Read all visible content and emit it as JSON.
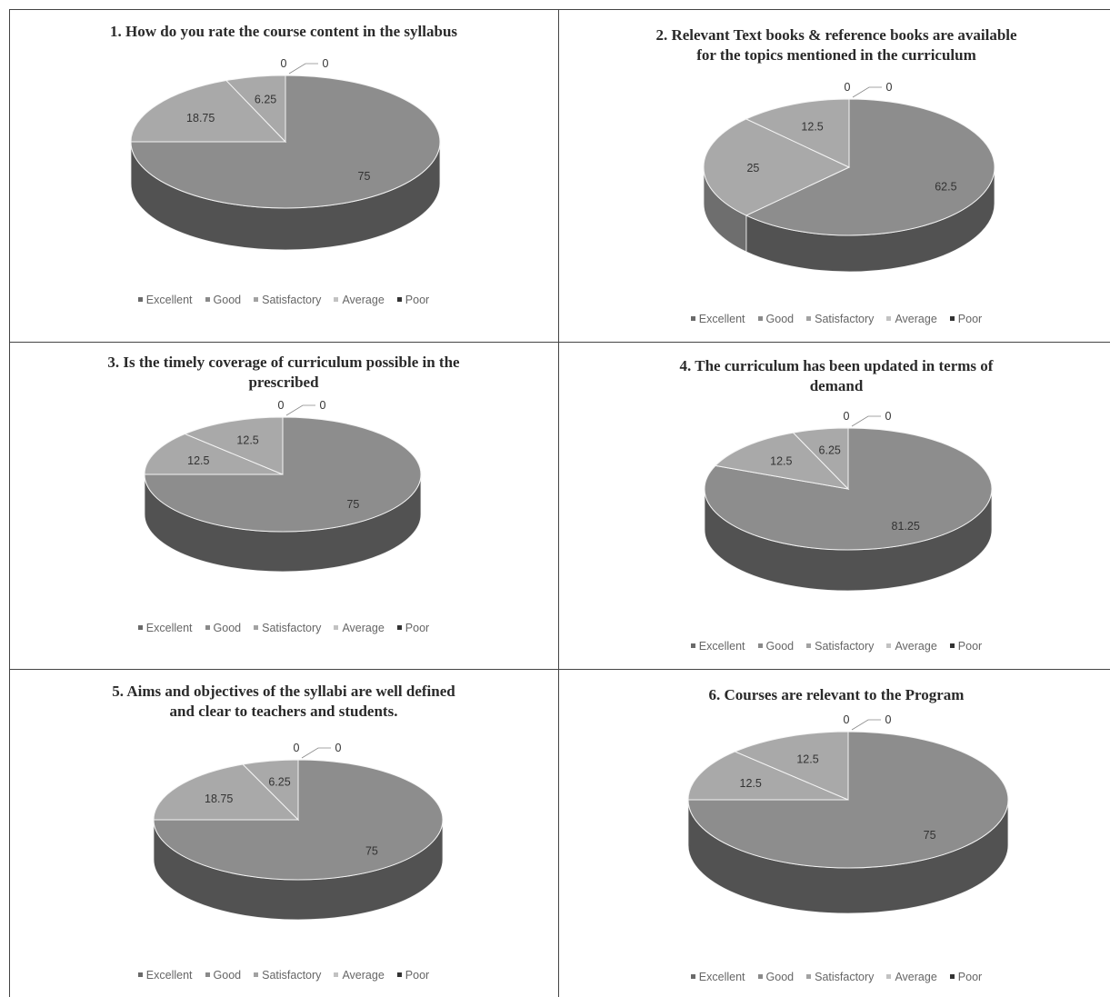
{
  "colors": {
    "top": "#8d8d8d",
    "side": "#525252",
    "small_top": "#a9a9a9",
    "small_side": "#6e6e6e",
    "edge": "#f4f4f4",
    "border": "#444444"
  },
  "chart_data": [
    {
      "type": "pie",
      "title": "1. How do you rate the course content in the syllabus",
      "categories": [
        "Excellent",
        "Good",
        "Satisfactory",
        "Average",
        "Poor"
      ],
      "values": [
        75,
        18.75,
        6.25,
        0,
        0
      ],
      "value_labels": [
        "75",
        "18.75",
        "6.25",
        "0",
        "0"
      ],
      "legend_position": "bottom"
    },
    {
      "type": "pie",
      "title": "2. Relevant Text books & reference books are available\nfor the topics mentioned in the curriculum",
      "categories": [
        "Excellent",
        "Good",
        "Satisfactory",
        "Average",
        "Poor"
      ],
      "values": [
        62.5,
        25,
        12.5,
        0,
        0
      ],
      "value_labels": [
        "62.5",
        "25",
        "12.5",
        "0",
        "0"
      ],
      "legend_position": "bottom"
    },
    {
      "type": "pie",
      "title": "3. Is the timely coverage of curriculum possible in the\nprescribed",
      "categories": [
        "Excellent",
        "Good",
        "Satisfactory",
        "Average",
        "Poor"
      ],
      "values": [
        75,
        12.5,
        12.5,
        0,
        0
      ],
      "value_labels": [
        "75",
        "12.5",
        "12.5",
        "0",
        "0"
      ],
      "legend_position": "bottom"
    },
    {
      "type": "pie",
      "title": "4. The curriculum has been updated in terms of\ndemand",
      "categories": [
        "Excellent",
        "Good",
        "Satisfactory",
        "Average",
        "Poor"
      ],
      "values": [
        81.25,
        12.5,
        6.25,
        0,
        0
      ],
      "value_labels": [
        "81.25",
        "12.5",
        "6.25",
        "0",
        "0"
      ],
      "legend_position": "bottom"
    },
    {
      "type": "pie",
      "title": "5. Aims and objectives of the syllabi are well defined\nand clear to teachers and students.",
      "categories": [
        "Excellent",
        "Good",
        "Satisfactory",
        "Average",
        "Poor"
      ],
      "values": [
        75,
        18.75,
        6.25,
        0,
        0
      ],
      "value_labels": [
        "75",
        "18.75",
        "6.25",
        "0",
        "0"
      ],
      "legend_position": "bottom"
    },
    {
      "type": "pie",
      "title": "6. Courses are relevant to the Program",
      "categories": [
        "Excellent",
        "Good",
        "Satisfactory",
        "Average",
        "Poor"
      ],
      "values": [
        75,
        12.5,
        12.5,
        0,
        0
      ],
      "value_labels": [
        "75",
        "12.5",
        "12.5",
        "0",
        "0"
      ],
      "legend_position": "bottom"
    }
  ]
}
